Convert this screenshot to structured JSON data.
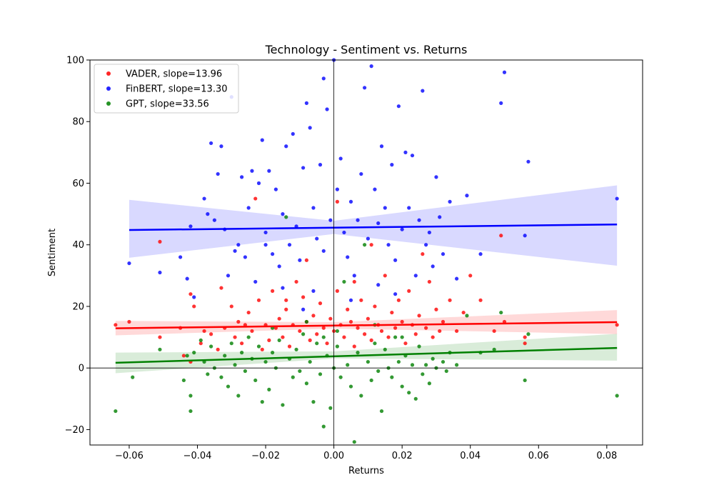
{
  "chart_data": {
    "type": "scatter",
    "title": "Technology - Sentiment vs. Returns",
    "xlabel": "Returns",
    "ylabel": "Sentiment",
    "xlim": [
      -0.0715,
      0.0905
    ],
    "ylim": [
      -25,
      100
    ],
    "xticks": [
      -0.06,
      -0.04,
      -0.02,
      0.0,
      0.02,
      0.04,
      0.06,
      0.08
    ],
    "xtick_labels": [
      "−0.06",
      "−0.04",
      "−0.02",
      "0.00",
      "0.02",
      "0.04",
      "0.06",
      "0.08"
    ],
    "yticks": [
      -20,
      0,
      20,
      40,
      60,
      80,
      100
    ],
    "ytick_labels": [
      "−20",
      "0",
      "20",
      "40",
      "60",
      "80",
      "100"
    ],
    "grid": false,
    "zero_lines": true,
    "legend_position": "top-left",
    "series": [
      {
        "name": "VADER, slope=13.96",
        "color": "#ff0000",
        "fit": {
          "x": [
            -0.064,
            0.083
          ],
          "y": [
            12.9,
            14.9
          ]
        },
        "ci": {
          "x": [
            -0.064,
            0.0,
            0.083
          ],
          "lower": [
            10.6,
            12.8,
            11.0
          ],
          "upper": [
            15.3,
            14.9,
            18.8
          ]
        },
        "points": [
          [
            -0.064,
            14
          ],
          [
            -0.06,
            15
          ],
          [
            -0.051,
            41
          ],
          [
            -0.051,
            10
          ],
          [
            -0.045,
            13
          ],
          [
            -0.044,
            4
          ],
          [
            -0.042,
            24
          ],
          [
            -0.042,
            2
          ],
          [
            -0.041,
            20
          ],
          [
            -0.039,
            8
          ],
          [
            -0.038,
            12
          ],
          [
            -0.036,
            11
          ],
          [
            -0.034,
            6
          ],
          [
            -0.033,
            26
          ],
          [
            -0.032,
            13
          ],
          [
            -0.03,
            20
          ],
          [
            -0.029,
            10
          ],
          [
            -0.028,
            15
          ],
          [
            -0.027,
            8
          ],
          [
            -0.025,
            18
          ],
          [
            -0.024,
            12
          ],
          [
            -0.023,
            55
          ],
          [
            -0.022,
            22
          ],
          [
            -0.021,
            6
          ],
          [
            -0.02,
            14
          ],
          [
            -0.019,
            9
          ],
          [
            -0.018,
            25
          ],
          [
            -0.017,
            13
          ],
          [
            -0.016,
            16
          ],
          [
            -0.015,
            10
          ],
          [
            -0.014,
            19
          ],
          [
            -0.013,
            7
          ],
          [
            -0.012,
            14
          ],
          [
            -0.011,
            28
          ],
          [
            -0.01,
            12
          ],
          [
            -0.009,
            23
          ],
          [
            -0.008,
            15
          ],
          [
            -0.007,
            9
          ],
          [
            -0.006,
            17
          ],
          [
            -0.005,
            11
          ],
          [
            -0.004,
            21
          ],
          [
            -0.003,
            13
          ],
          [
            -0.002,
            8
          ],
          [
            -0.001,
            16
          ],
          [
            0.0,
            12
          ],
          [
            0.001,
            25
          ],
          [
            0.002,
            14
          ],
          [
            0.003,
            10
          ],
          [
            0.004,
            19
          ],
          [
            0.005,
            15
          ],
          [
            0.006,
            7
          ],
          [
            0.007,
            13
          ],
          [
            0.008,
            22
          ],
          [
            0.009,
            11
          ],
          [
            0.01,
            16
          ],
          [
            0.011,
            9
          ],
          [
            0.012,
            20
          ],
          [
            0.013,
            14
          ],
          [
            0.014,
            12
          ],
          [
            0.015,
            30
          ],
          [
            0.016,
            10
          ],
          [
            0.017,
            18
          ],
          [
            0.018,
            13
          ],
          [
            0.019,
            22
          ],
          [
            0.02,
            15
          ],
          [
            0.021,
            8
          ],
          [
            0.022,
            25
          ],
          [
            0.023,
            14
          ],
          [
            0.024,
            11
          ],
          [
            0.025,
            17
          ],
          [
            0.026,
            37
          ],
          [
            0.027,
            13
          ],
          [
            0.028,
            28
          ],
          [
            0.029,
            10
          ],
          [
            0.03,
            19
          ],
          [
            0.031,
            12
          ],
          [
            0.032,
            15
          ],
          [
            0.034,
            22
          ],
          [
            0.036,
            12
          ],
          [
            0.038,
            18
          ],
          [
            0.04,
            30
          ],
          [
            0.043,
            22
          ],
          [
            0.047,
            12
          ],
          [
            0.049,
            43
          ],
          [
            0.05,
            15
          ],
          [
            0.056,
            8
          ],
          [
            0.056,
            10
          ],
          [
            0.083,
            14
          ],
          [
            -0.008,
            35
          ],
          [
            0.001,
            54
          ],
          [
            -0.014,
            22
          ],
          [
            0.011,
            40
          ],
          [
            -0.026,
            14
          ],
          [
            0.006,
            28
          ]
        ]
      },
      {
        "name": "FinBERT, slope=13.30",
        "color": "#0000ff",
        "fit": {
          "x": [
            -0.06,
            0.083
          ],
          "y": [
            44.8,
            46.6
          ]
        },
        "ci": {
          "x": [
            -0.06,
            0.0,
            0.083
          ],
          "lower": [
            35.8,
            43.5,
            33.2
          ],
          "upper": [
            54.6,
            47.8,
            59.3
          ]
        },
        "points": [
          [
            -0.06,
            34
          ],
          [
            -0.051,
            31
          ],
          [
            -0.045,
            36
          ],
          [
            -0.043,
            29
          ],
          [
            -0.042,
            46
          ],
          [
            -0.041,
            23
          ],
          [
            -0.038,
            55
          ],
          [
            -0.037,
            50
          ],
          [
            -0.036,
            73
          ],
          [
            -0.035,
            48
          ],
          [
            -0.034,
            63
          ],
          [
            -0.033,
            72
          ],
          [
            -0.032,
            45
          ],
          [
            -0.031,
            30
          ],
          [
            -0.03,
            88
          ],
          [
            -0.029,
            38
          ],
          [
            -0.028,
            40
          ],
          [
            -0.027,
            62
          ],
          [
            -0.026,
            36
          ],
          [
            -0.025,
            52
          ],
          [
            -0.024,
            64
          ],
          [
            -0.023,
            28
          ],
          [
            -0.022,
            60
          ],
          [
            -0.021,
            74
          ],
          [
            -0.02,
            44
          ],
          [
            -0.019,
            64
          ],
          [
            -0.018,
            37
          ],
          [
            -0.017,
            58
          ],
          [
            -0.016,
            33
          ],
          [
            -0.015,
            50
          ],
          [
            -0.014,
            72
          ],
          [
            -0.013,
            40
          ],
          [
            -0.012,
            76
          ],
          [
            -0.011,
            46
          ],
          [
            -0.01,
            35
          ],
          [
            -0.009,
            65
          ],
          [
            -0.008,
            86
          ],
          [
            -0.007,
            78
          ],
          [
            -0.006,
            52
          ],
          [
            -0.005,
            42
          ],
          [
            -0.004,
            66
          ],
          [
            -0.003,
            38
          ],
          [
            -0.002,
            84
          ],
          [
            -0.001,
            48
          ],
          [
            0.0,
            100
          ],
          [
            0.001,
            58
          ],
          [
            0.002,
            68
          ],
          [
            0.003,
            44
          ],
          [
            0.004,
            36
          ],
          [
            0.005,
            54
          ],
          [
            0.006,
            30
          ],
          [
            0.007,
            48
          ],
          [
            0.008,
            63
          ],
          [
            0.009,
            91
          ],
          [
            0.01,
            42
          ],
          [
            0.011,
            98
          ],
          [
            0.012,
            58
          ],
          [
            0.013,
            47
          ],
          [
            0.014,
            72
          ],
          [
            0.015,
            52
          ],
          [
            0.016,
            40
          ],
          [
            0.017,
            66
          ],
          [
            0.018,
            35
          ],
          [
            0.019,
            85
          ],
          [
            0.02,
            45
          ],
          [
            0.021,
            70
          ],
          [
            0.022,
            52
          ],
          [
            0.023,
            69
          ],
          [
            0.024,
            30
          ],
          [
            0.025,
            48
          ],
          [
            0.026,
            90
          ],
          [
            0.027,
            40
          ],
          [
            0.028,
            44
          ],
          [
            0.029,
            33
          ],
          [
            0.03,
            62
          ],
          [
            0.031,
            49
          ],
          [
            0.032,
            37
          ],
          [
            0.034,
            54
          ],
          [
            0.036,
            29
          ],
          [
            0.039,
            56
          ],
          [
            0.043,
            37
          ],
          [
            0.049,
            86
          ],
          [
            0.05,
            96
          ],
          [
            0.056,
            43
          ],
          [
            0.057,
            67
          ],
          [
            0.083,
            55
          ],
          [
            -0.003,
            94
          ],
          [
            -0.015,
            26
          ],
          [
            0.005,
            22
          ],
          [
            -0.009,
            19
          ],
          [
            0.013,
            27
          ],
          [
            -0.02,
            40
          ],
          [
            0.018,
            24
          ],
          [
            -0.006,
            25
          ]
        ]
      },
      {
        "name": "GPT, slope=33.56",
        "color": "#008000",
        "fit": {
          "x": [
            -0.064,
            0.083
          ],
          "y": [
            1.7,
            6.5
          ]
        },
        "ci": {
          "x": [
            -0.064,
            0.0,
            0.083
          ],
          "lower": [
            -1.7,
            3.1,
            2.4
          ],
          "upper": [
            5.0,
            5.4,
            11.1
          ]
        },
        "points": [
          [
            -0.064,
            -14
          ],
          [
            -0.059,
            -3
          ],
          [
            -0.051,
            6
          ],
          [
            -0.044,
            -4
          ],
          [
            -0.043,
            4
          ],
          [
            -0.042,
            -9
          ],
          [
            -0.042,
            -14
          ],
          [
            -0.041,
            5
          ],
          [
            -0.039,
            9
          ],
          [
            -0.038,
            2
          ],
          [
            -0.037,
            -2
          ],
          [
            -0.036,
            7
          ],
          [
            -0.035,
            0
          ],
          [
            -0.033,
            -3
          ],
          [
            -0.032,
            4
          ],
          [
            -0.031,
            -6
          ],
          [
            -0.03,
            8
          ],
          [
            -0.029,
            1
          ],
          [
            -0.028,
            -9
          ],
          [
            -0.027,
            5
          ],
          [
            -0.026,
            -1
          ],
          [
            -0.025,
            10
          ],
          [
            -0.024,
            3
          ],
          [
            -0.023,
            -4
          ],
          [
            -0.022,
            7
          ],
          [
            -0.021,
            -11
          ],
          [
            -0.02,
            2
          ],
          [
            -0.019,
            -7
          ],
          [
            -0.018,
            5
          ],
          [
            -0.017,
            0
          ],
          [
            -0.016,
            9
          ],
          [
            -0.015,
            -12
          ],
          [
            -0.014,
            49
          ],
          [
            -0.013,
            3
          ],
          [
            -0.012,
            -3
          ],
          [
            -0.011,
            6
          ],
          [
            -0.01,
            -1
          ],
          [
            -0.009,
            11
          ],
          [
            -0.008,
            -5
          ],
          [
            -0.007,
            2
          ],
          [
            -0.006,
            -11
          ],
          [
            -0.005,
            8
          ],
          [
            -0.004,
            -2
          ],
          [
            -0.003,
            -19
          ],
          [
            -0.002,
            4
          ],
          [
            -0.001,
            -13
          ],
          [
            0.0,
            0
          ],
          [
            0.001,
            7
          ],
          [
            0.002,
            -3
          ],
          [
            0.003,
            28
          ],
          [
            0.004,
            1
          ],
          [
            0.005,
            -6
          ],
          [
            0.006,
            -24
          ],
          [
            0.007,
            5
          ],
          [
            0.008,
            -9
          ],
          [
            0.009,
            40
          ],
          [
            0.01,
            2
          ],
          [
            0.011,
            -4
          ],
          [
            0.012,
            8
          ],
          [
            0.013,
            -1
          ],
          [
            0.014,
            -14
          ],
          [
            0.015,
            6
          ],
          [
            0.016,
            0
          ],
          [
            0.017,
            -3
          ],
          [
            0.018,
            10
          ],
          [
            0.019,
            2
          ],
          [
            0.02,
            -6
          ],
          [
            0.021,
            4
          ],
          [
            0.022,
            -8
          ],
          [
            0.023,
            1
          ],
          [
            0.024,
            -10
          ],
          [
            0.025,
            7
          ],
          [
            0.026,
            -2
          ],
          [
            0.027,
            1
          ],
          [
            0.028,
            -5
          ],
          [
            0.029,
            3
          ],
          [
            0.03,
            0
          ],
          [
            0.032,
            2
          ],
          [
            0.033,
            -1
          ],
          [
            0.034,
            5
          ],
          [
            0.036,
            1
          ],
          [
            0.039,
            17
          ],
          [
            0.043,
            5
          ],
          [
            0.047,
            6
          ],
          [
            0.049,
            18
          ],
          [
            0.056,
            -4
          ],
          [
            0.057,
            11
          ],
          [
            0.083,
            -9
          ],
          [
            -0.008,
            15
          ],
          [
            0.001,
            12
          ],
          [
            0.012,
            14
          ],
          [
            -0.018,
            13
          ],
          [
            0.02,
            10
          ],
          [
            -0.003,
            10
          ]
        ]
      }
    ]
  }
}
